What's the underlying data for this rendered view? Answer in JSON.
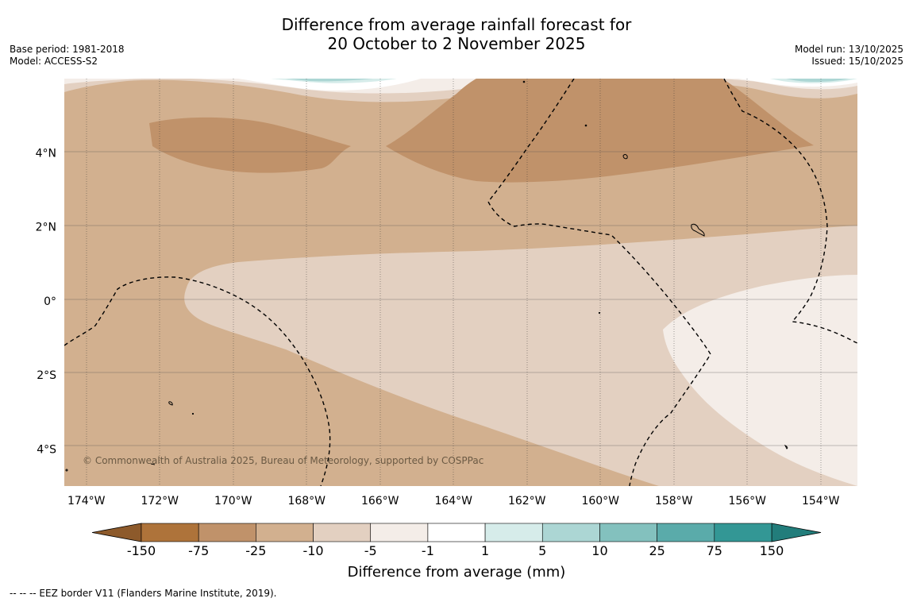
{
  "title": {
    "line1": "Difference from average rainfall forecast for",
    "line2": "20 October to 2 November 2025"
  },
  "meta_left": {
    "base_period": "Base period: 1981-2018",
    "model": "Model: ACCESS-S2"
  },
  "meta_right": {
    "model_run": "Model run: 13/10/2025",
    "issued": "Issued: 15/10/2025"
  },
  "map": {
    "lon_range": [
      -174.6,
      -153.0
    ],
    "lat_range": [
      -5.0,
      6.0
    ],
    "lon_ticks": [
      {
        "value": -174,
        "label": "174°W"
      },
      {
        "value": -172,
        "label": "172°W"
      },
      {
        "value": -170,
        "label": "170°W"
      },
      {
        "value": -168,
        "label": "168°W"
      },
      {
        "value": -166,
        "label": "166°W"
      },
      {
        "value": -164,
        "label": "164°W"
      },
      {
        "value": -162,
        "label": "162°W"
      },
      {
        "value": -160,
        "label": "160°W"
      },
      {
        "value": -158,
        "label": "158°W"
      },
      {
        "value": -156,
        "label": "156°W"
      },
      {
        "value": -154,
        "label": "154°W"
      }
    ],
    "lat_ticks": [
      {
        "value": 4,
        "label": "4°N"
      },
      {
        "value": 2,
        "label": "2°N"
      },
      {
        "value": 0,
        "label": "0°"
      },
      {
        "value": -2,
        "label": "2°S"
      },
      {
        "value": -4,
        "label": "4°S"
      }
    ],
    "copyright": "© Commonwealth of Australia 2025, Bureau of Meteorology, supported by COSPPac"
  },
  "colorbar": {
    "title": "Difference from average (mm)",
    "boundaries": [
      "-150",
      "-75",
      "-25",
      "-10",
      "-5",
      "-1",
      "1",
      "5",
      "10",
      "25",
      "75",
      "150"
    ],
    "colors": [
      "#ae733a",
      "#c0926a",
      "#d2b08f",
      "#e3d0c1",
      "#f4ede8",
      "#ffffff",
      "#d6ecea",
      "#acd6d4",
      "#83c1be",
      "#5aabaa",
      "#339795"
    ],
    "extend_low_color": "#8d5a2b",
    "extend_high_color": "#227d7b"
  },
  "footnote": "--  --  -- EEZ border V11 (Flanders Marine Institute, 2019)."
}
